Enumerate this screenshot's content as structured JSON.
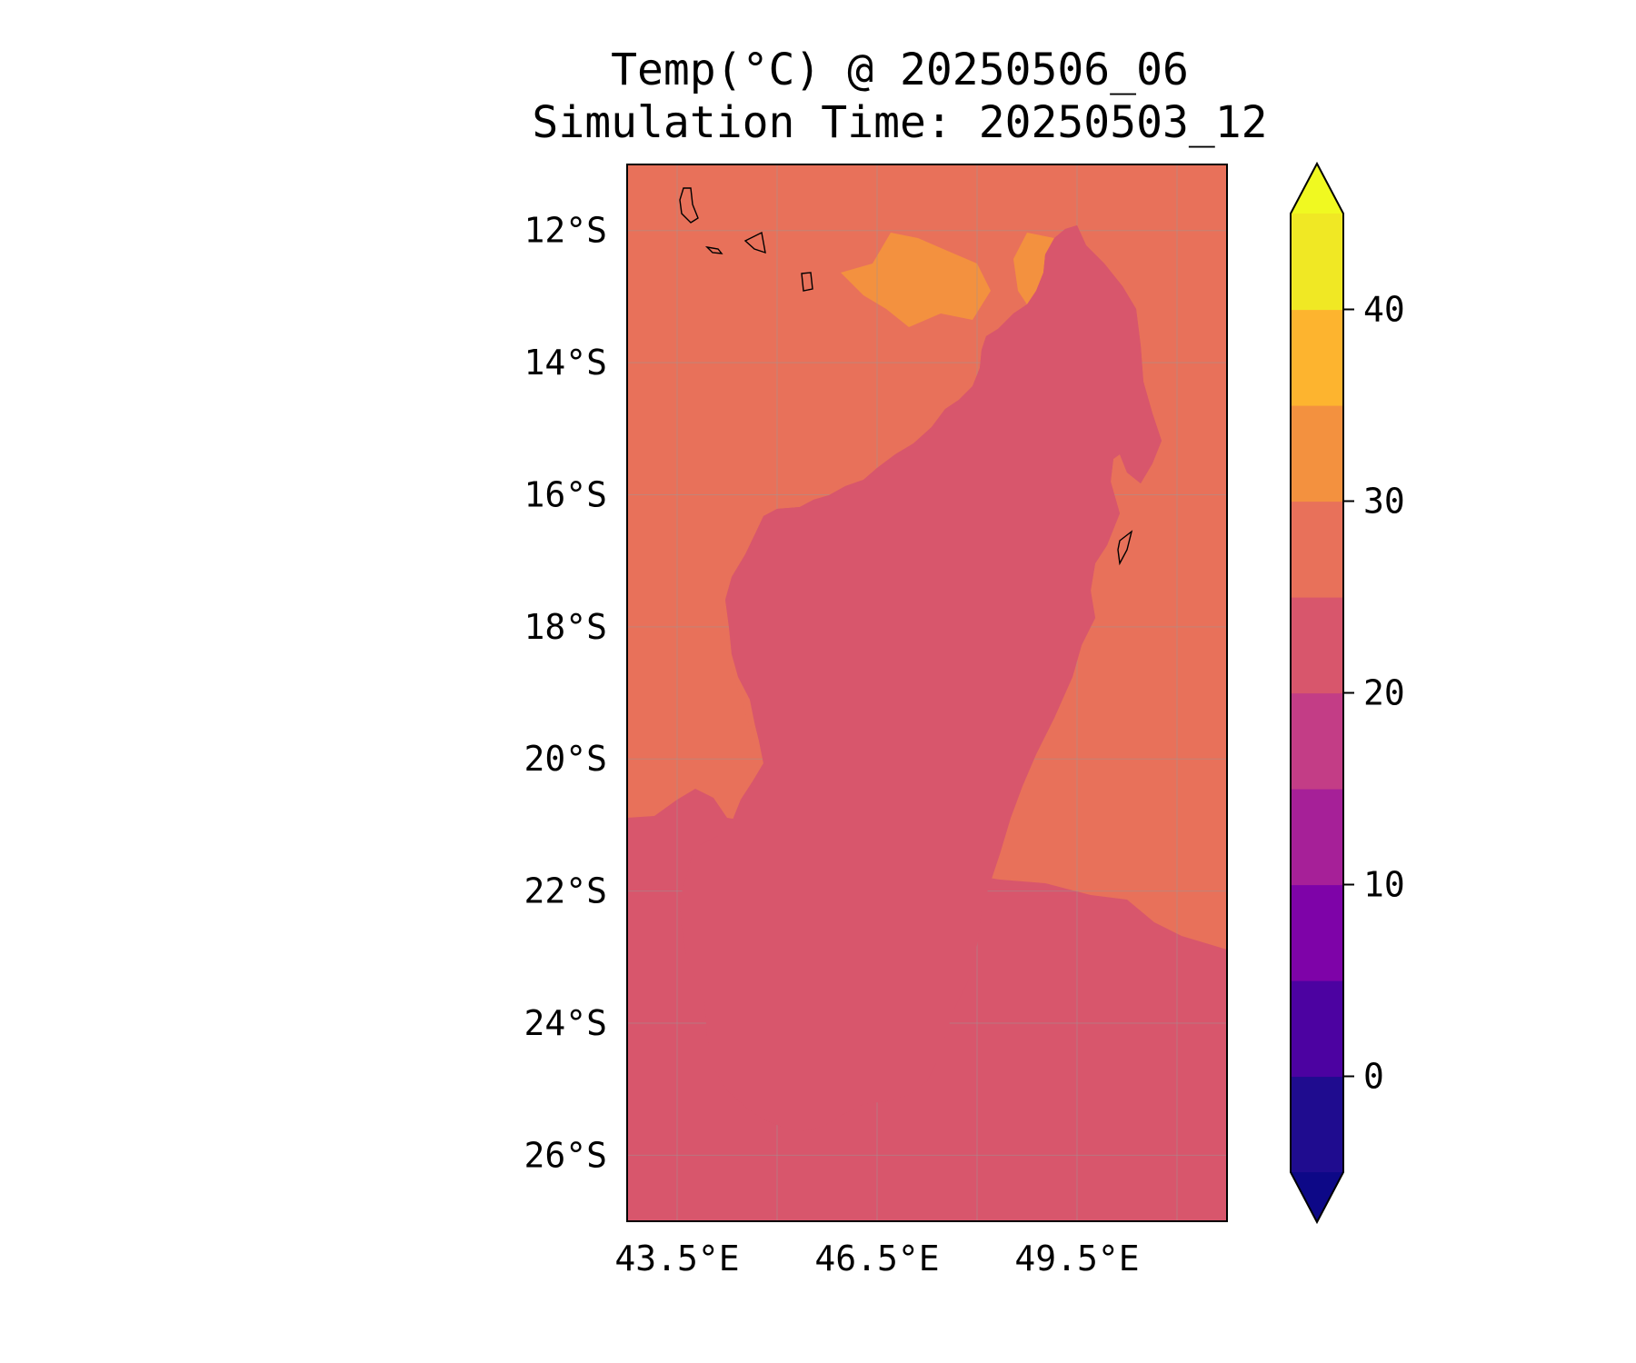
{
  "title": {
    "line1": "Temp(°C) @ 20250506_06",
    "line2": "Simulation Time: 20250503_12"
  },
  "map": {
    "region": "Madagascar",
    "lon_range": [
      42.75,
      51.75
    ],
    "lat_range": [
      -27,
      -11
    ],
    "lat_ticks": [
      {
        "value": -12,
        "label": "12°S"
      },
      {
        "value": -14,
        "label": "14°S"
      },
      {
        "value": -16,
        "label": "16°S"
      },
      {
        "value": -18,
        "label": "18°S"
      },
      {
        "value": -20,
        "label": "20°S"
      },
      {
        "value": -22,
        "label": "22°S"
      },
      {
        "value": -24,
        "label": "24°S"
      },
      {
        "value": -26,
        "label": "26°S"
      }
    ],
    "lon_ticks": [
      {
        "value": 43.5,
        "label": "43.5°E"
      },
      {
        "value": 46.5,
        "label": "46.5°E"
      },
      {
        "value": 49.5,
        "label": "49.5°E"
      }
    ],
    "gridlines": true
  },
  "colorbar": {
    "levels": [
      -5,
      0,
      5,
      10,
      15,
      20,
      25,
      30,
      35,
      40,
      45
    ],
    "colors": [
      "#1f0c8f",
      "#4c02a1",
      "#7e03a8",
      "#a62098",
      "#c33d86",
      "#d8566c",
      "#e8715a",
      "#f3913f",
      "#fdb42f",
      "#f0e824"
    ],
    "under_color": "#0d0887",
    "over_color": "#f0f921",
    "ticks": [
      {
        "value": 0,
        "label": "0"
      },
      {
        "value": 10,
        "label": "10"
      },
      {
        "value": 20,
        "label": "20"
      },
      {
        "value": 30,
        "label": "30"
      },
      {
        "value": 40,
        "label": "40"
      }
    ],
    "extend": "both"
  }
}
